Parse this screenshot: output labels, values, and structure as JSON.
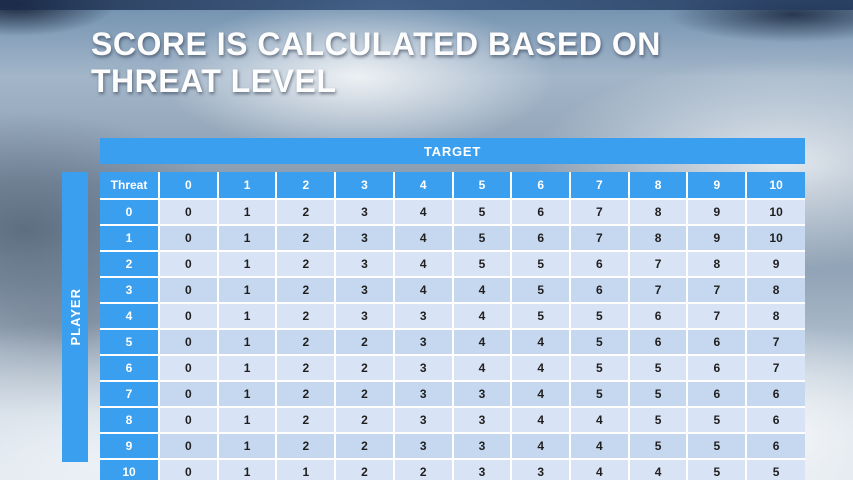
{
  "slide": {
    "title": "SCORE IS CALCULATED BASED ON THREAT LEVEL"
  },
  "colors": {
    "header_blue": "#3B9FF0",
    "band_light": "#D8E4F5",
    "band_dark": "#C6D8F0",
    "cell_text": "#1F1F1F",
    "title_text": "#FFFFFF"
  },
  "chart_data": {
    "type": "table",
    "title": "SCORE IS CALCULATED BASED ON THREAT LEVEL",
    "column_group_label": "TARGET",
    "row_group_label": "PLAYER",
    "corner_label": "Threat",
    "columns": [
      "0",
      "1",
      "2",
      "3",
      "4",
      "5",
      "6",
      "7",
      "8",
      "9",
      "10"
    ],
    "row_labels": [
      "0",
      "1",
      "2",
      "3",
      "4",
      "5",
      "6",
      "7",
      "8",
      "9",
      "10"
    ],
    "values": [
      [
        0,
        1,
        2,
        3,
        4,
        5,
        6,
        7,
        8,
        9,
        10
      ],
      [
        0,
        1,
        2,
        3,
        4,
        5,
        6,
        7,
        8,
        9,
        10
      ],
      [
        0,
        1,
        2,
        3,
        4,
        5,
        5,
        6,
        7,
        8,
        9
      ],
      [
        0,
        1,
        2,
        3,
        4,
        4,
        5,
        6,
        7,
        7,
        8
      ],
      [
        0,
        1,
        2,
        3,
        3,
        4,
        5,
        5,
        6,
        7,
        8
      ],
      [
        0,
        1,
        2,
        2,
        3,
        4,
        4,
        5,
        6,
        6,
        7
      ],
      [
        0,
        1,
        2,
        2,
        3,
        4,
        4,
        5,
        5,
        6,
        7
      ],
      [
        0,
        1,
        2,
        2,
        3,
        3,
        4,
        5,
        5,
        6,
        6
      ],
      [
        0,
        1,
        2,
        2,
        3,
        3,
        4,
        4,
        5,
        5,
        6
      ],
      [
        0,
        1,
        2,
        2,
        3,
        3,
        4,
        4,
        5,
        5,
        6
      ],
      [
        0,
        1,
        1,
        2,
        2,
        3,
        3,
        4,
        4,
        5,
        5
      ]
    ]
  }
}
